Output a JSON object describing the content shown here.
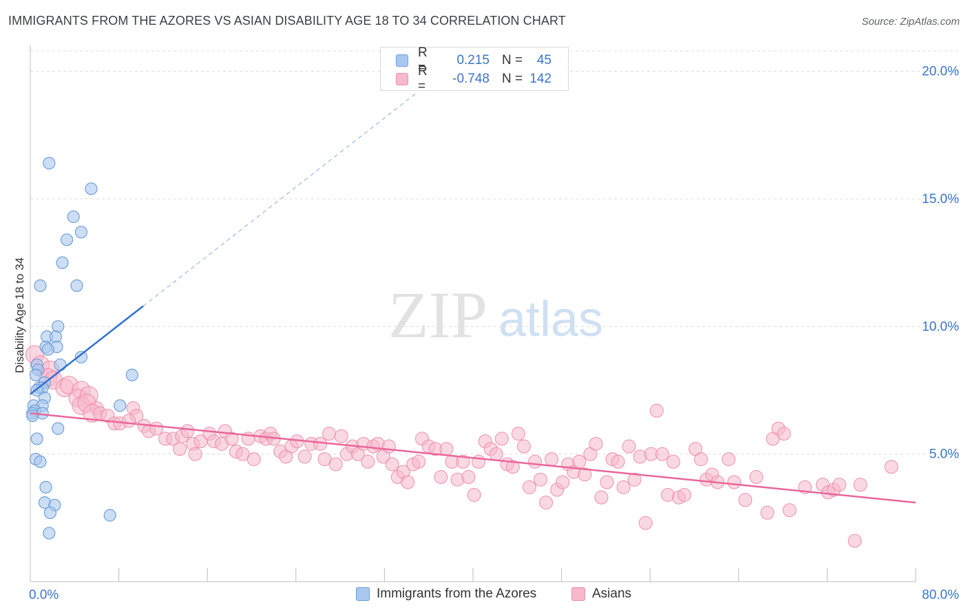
{
  "header": {
    "title": "IMMIGRANTS FROM THE AZORES VS ASIAN DISABILITY AGE 18 TO 34 CORRELATION CHART",
    "source": "Source: ZipAtlas.com"
  },
  "watermark": {
    "zip": "ZIP",
    "atlas": "atlas"
  },
  "legend": {
    "rows": [
      {
        "r_label": "R =",
        "r_value": "0.215",
        "n_label": "N =",
        "n_value": "45"
      },
      {
        "r_label": "R =",
        "r_value": "-0.748",
        "n_label": "N =",
        "n_value": "142"
      }
    ]
  },
  "colors": {
    "blue_fill": "#aac8ee",
    "blue_stroke": "#6f9fd8",
    "blue_line": "#2f6fcf",
    "pink_fill": "#f6b8cb",
    "pink_stroke": "#ec8eac",
    "pink_line": "#e8669a",
    "value_text": "#3b74c9",
    "grid": "#dcdcdc"
  },
  "chart_data": {
    "type": "scatter",
    "title": "IMMIGRANTS FROM THE AZORES VS ASIAN DISABILITY AGE 18 TO 34 CORRELATION CHART",
    "xlabel": "",
    "ylabel": "Disability Age 18 to 34",
    "xlim": [
      0,
      80
    ],
    "ylim": [
      0,
      20.8
    ],
    "x_tick_labels": [
      "0.0%",
      "80.0%"
    ],
    "y_ticks": [
      5,
      10,
      15,
      20
    ],
    "y_tick_labels": [
      "5.0%",
      "10.0%",
      "15.0%",
      "20.0%"
    ],
    "legend_position": "top-center",
    "series": [
      {
        "name": "Immigrants from the Azores",
        "r": 0.215,
        "n": 45,
        "trend": {
          "x1": 0,
          "y1": 7.35,
          "x2": 10.2,
          "y2": 10.8,
          "dashed_to_x": 35
        },
        "points": [
          [
            1.7,
            16.4
          ],
          [
            5.5,
            15.4
          ],
          [
            3.9,
            14.3
          ],
          [
            4.6,
            13.7
          ],
          [
            3.3,
            13.4
          ],
          [
            2.9,
            12.5
          ],
          [
            0.9,
            11.6
          ],
          [
            4.2,
            11.6
          ],
          [
            2.5,
            10.0
          ],
          [
            1.5,
            9.6
          ],
          [
            2.3,
            9.6
          ],
          [
            1.4,
            9.2
          ],
          [
            2.4,
            9.2
          ],
          [
            1.6,
            9.1
          ],
          [
            4.6,
            8.8
          ],
          [
            0.6,
            8.5
          ],
          [
            2.7,
            8.5
          ],
          [
            0.7,
            8.3
          ],
          [
            0.5,
            8.1
          ],
          [
            9.2,
            8.1
          ],
          [
            1.3,
            7.8
          ],
          [
            0.8,
            7.6
          ],
          [
            1.1,
            7.6
          ],
          [
            0.6,
            7.5
          ],
          [
            1.3,
            7.2
          ],
          [
            0.3,
            6.9
          ],
          [
            1.1,
            6.9
          ],
          [
            8.1,
            6.9
          ],
          [
            0.4,
            6.7
          ],
          [
            0.2,
            6.6
          ],
          [
            1.1,
            6.6
          ],
          [
            0.2,
            6.5
          ],
          [
            2.5,
            6.0
          ],
          [
            0.6,
            5.6
          ],
          [
            0.5,
            4.8
          ],
          [
            0.9,
            4.7
          ],
          [
            1.4,
            3.7
          ],
          [
            1.3,
            3.1
          ],
          [
            2.2,
            3.0
          ],
          [
            1.8,
            2.7
          ],
          [
            7.2,
            2.6
          ],
          [
            1.7,
            1.9
          ]
        ]
      },
      {
        "name": "Asians",
        "r": -0.748,
        "n": 142,
        "trend": {
          "x1": 0,
          "y1": 6.6,
          "x2": 80,
          "y2": 3.1
        },
        "points": [
          [
            0.4,
            8.9
          ],
          [
            0.9,
            8.5
          ],
          [
            1.8,
            8.3
          ],
          [
            1.6,
            8.0
          ],
          [
            2.1,
            7.9
          ],
          [
            3.1,
            7.6
          ],
          [
            3.5,
            7.7
          ],
          [
            4.6,
            7.5
          ],
          [
            4.3,
            7.2
          ],
          [
            5.3,
            7.3
          ],
          [
            4.6,
            6.9
          ],
          [
            5.1,
            7.0
          ],
          [
            6.0,
            6.8
          ],
          [
            5.6,
            6.6
          ],
          [
            6.3,
            6.6
          ],
          [
            7.0,
            6.5
          ],
          [
            9.3,
            6.8
          ],
          [
            9.6,
            6.5
          ],
          [
            7.6,
            6.2
          ],
          [
            8.1,
            6.2
          ],
          [
            8.9,
            6.3
          ],
          [
            10.3,
            6.1
          ],
          [
            10.7,
            5.9
          ],
          [
            11.4,
            6.0
          ],
          [
            12.2,
            5.6
          ],
          [
            12.9,
            5.6
          ],
          [
            13.7,
            5.7
          ],
          [
            14.2,
            5.9
          ],
          [
            14.7,
            5.4
          ],
          [
            13.5,
            5.2
          ],
          [
            14.9,
            5.0
          ],
          [
            15.4,
            5.5
          ],
          [
            16.2,
            5.8
          ],
          [
            16.6,
            5.5
          ],
          [
            17.3,
            5.4
          ],
          [
            17.6,
            5.9
          ],
          [
            18.2,
            5.6
          ],
          [
            18.6,
            5.1
          ],
          [
            19.2,
            5.0
          ],
          [
            19.7,
            5.6
          ],
          [
            20.2,
            4.8
          ],
          [
            20.8,
            5.7
          ],
          [
            21.3,
            5.6
          ],
          [
            21.7,
            5.8
          ],
          [
            22.0,
            5.6
          ],
          [
            22.6,
            5.1
          ],
          [
            23.1,
            4.9
          ],
          [
            23.6,
            5.3
          ],
          [
            24.1,
            5.5
          ],
          [
            24.8,
            4.9
          ],
          [
            25.4,
            5.4
          ],
          [
            26.2,
            5.4
          ],
          [
            26.6,
            4.8
          ],
          [
            27.0,
            5.8
          ],
          [
            27.6,
            4.6
          ],
          [
            28.1,
            5.7
          ],
          [
            28.6,
            5.0
          ],
          [
            29.1,
            5.3
          ],
          [
            29.6,
            5.0
          ],
          [
            30.1,
            5.4
          ],
          [
            30.5,
            4.7
          ],
          [
            31.0,
            5.3
          ],
          [
            31.4,
            5.4
          ],
          [
            31.9,
            4.9
          ],
          [
            32.4,
            5.3
          ],
          [
            32.7,
            4.6
          ],
          [
            33.2,
            4.1
          ],
          [
            33.7,
            4.3
          ],
          [
            34.1,
            3.9
          ],
          [
            34.6,
            4.6
          ],
          [
            35.1,
            4.7
          ],
          [
            35.4,
            5.6
          ],
          [
            36.0,
            5.3
          ],
          [
            36.6,
            5.2
          ],
          [
            37.1,
            4.1
          ],
          [
            37.6,
            5.2
          ],
          [
            38.1,
            4.7
          ],
          [
            38.6,
            4.0
          ],
          [
            39.1,
            4.7
          ],
          [
            39.6,
            4.1
          ],
          [
            40.1,
            3.4
          ],
          [
            40.5,
            4.7
          ],
          [
            41.1,
            5.5
          ],
          [
            41.6,
            5.2
          ],
          [
            42.1,
            5.0
          ],
          [
            42.6,
            5.6
          ],
          [
            43.1,
            4.6
          ],
          [
            43.6,
            4.5
          ],
          [
            44.1,
            5.8
          ],
          [
            44.6,
            5.3
          ],
          [
            45.1,
            3.7
          ],
          [
            45.6,
            4.7
          ],
          [
            46.1,
            4.0
          ],
          [
            46.6,
            3.1
          ],
          [
            47.1,
            4.8
          ],
          [
            47.6,
            3.6
          ],
          [
            48.1,
            3.9
          ],
          [
            48.6,
            4.6
          ],
          [
            49.1,
            4.3
          ],
          [
            49.6,
            4.7
          ],
          [
            50.1,
            4.2
          ],
          [
            50.6,
            5.0
          ],
          [
            51.1,
            5.4
          ],
          [
            51.6,
            3.3
          ],
          [
            52.1,
            3.9
          ],
          [
            52.6,
            4.8
          ],
          [
            53.1,
            4.7
          ],
          [
            53.6,
            3.7
          ],
          [
            54.1,
            5.3
          ],
          [
            54.6,
            4.0
          ],
          [
            55.1,
            4.9
          ],
          [
            55.6,
            2.3
          ],
          [
            56.1,
            5.0
          ],
          [
            56.6,
            6.7
          ],
          [
            57.1,
            5.0
          ],
          [
            57.6,
            3.4
          ],
          [
            58.1,
            4.7
          ],
          [
            58.6,
            3.3
          ],
          [
            59.1,
            3.4
          ],
          [
            60.1,
            5.2
          ],
          [
            60.6,
            4.8
          ],
          [
            61.1,
            4.0
          ],
          [
            61.6,
            4.2
          ],
          [
            62.1,
            3.9
          ],
          [
            63.1,
            4.8
          ],
          [
            63.6,
            3.9
          ],
          [
            64.6,
            3.2
          ],
          [
            65.6,
            4.1
          ],
          [
            66.6,
            2.7
          ],
          [
            67.1,
            5.6
          ],
          [
            67.6,
            6.0
          ],
          [
            68.1,
            5.8
          ],
          [
            68.6,
            2.8
          ],
          [
            70.0,
            3.7
          ],
          [
            71.6,
            3.8
          ],
          [
            72.1,
            3.5
          ],
          [
            72.6,
            3.6
          ],
          [
            73.1,
            3.8
          ],
          [
            75.0,
            3.8
          ],
          [
            74.5,
            1.6
          ],
          [
            77.8,
            4.5
          ]
        ]
      }
    ]
  },
  "bottom_legend": {
    "items": [
      {
        "label": "Immigrants from the Azores"
      },
      {
        "label": "Asians"
      }
    ]
  }
}
